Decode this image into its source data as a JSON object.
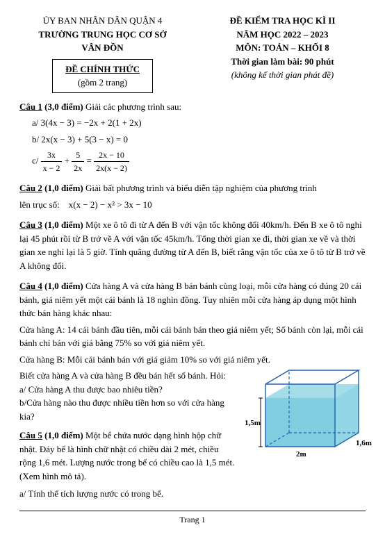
{
  "header": {
    "left1": "ỦY BAN NHÂN DÂN QUẬN 4",
    "left2": "TRƯỜNG TRUNG HỌC CƠ SỞ",
    "left3": "VÂN ĐỒN",
    "box1": "ĐỀ CHÍNH THỨC",
    "box2": "(gồm 2 trang)",
    "right1": "ĐỀ KIỂM TRA HỌC KÌ II",
    "right2": "NĂM HỌC 2022 – 2023",
    "right3": "MÔN: TOÁN – KHỐI 8",
    "right4": "Thời gian làm bài: 90 phút",
    "right5": "(không kể thời gian phát đề)"
  },
  "q1": {
    "title": "Câu 1",
    "pts": "(3,0 điểm)",
    "text": "Giải các phương trình sau:",
    "a_label": "a/",
    "a": "3(4x − 3) = −2x + 2(1 + 2x)",
    "b_label": "b/",
    "b": "2x(x − 3) + 5(3 − x) = 0",
    "c_label": "c/",
    "c_n1": "3x",
    "c_d1": "x − 2",
    "c_plus": "+",
    "c_n2": "5",
    "c_d2": "2x",
    "c_eq": "=",
    "c_n3": "2x − 10",
    "c_d3": "2x(x − 2)"
  },
  "q2": {
    "title": "Câu 2",
    "pts": "(1,0 điểm)",
    "text": "Giải bất phương trình và biểu diễn tập nghiệm của phương trình",
    "line2": "lên trục số:",
    "eq": "x(x − 2) − x² > 3x − 10"
  },
  "q3": {
    "title": "Câu 3",
    "pts": "(1,0 điểm)",
    "text": "Một xe ô tô đi từ A đến B với vận tốc không đổi 40km/h. Đến B xe ô tô nghỉ lại 45 phút rồi từ B trở về A với vận tốc 45km/h. Tổng thời gian xe đi, thời gian xe về và thời gian xe nghỉ lại là 5 giờ. Tính quãng đường từ A đến B, biết rằng vận tốc của xe ô tô từ B trở về A không đổi."
  },
  "q4": {
    "title": "Câu 4",
    "pts": "(1,0 điểm)",
    "p1": "Cửa hàng A và cửa hàng B bán bánh cùng loại, mỗi cửa hàng có đúng 20 cái bánh, giá niêm yết một cái bánh là 18 nghìn đồng. Tuy nhiên mỗi cửa hàng áp dụng một hình thức bán hàng khác nhau:",
    "p2": "Cửa hàng A:  14 cái bánh đầu tiên, mỗi cái bánh bán theo giá niêm yết; Số bánh còn lại, mỗi cái bánh chỉ bán với giá bằng 75% so với giá niêm yết.",
    "p3": "Cửa hàng B: Mỗi cái bánh bán với giá giảm 10%  so với giá niêm yết.",
    "p4": "Biết cửa hàng A và cửa hàng B đều bán hết số bánh. Hỏi:",
    "a": "a/ Cửa hàng A thu được bao nhiêu tiền?",
    "b": "b/Cửa hàng nào thu được nhiều tiền hơn so với cửa hàng kia?"
  },
  "q5": {
    "title": "Câu 5",
    "pts": "(1,0 điểm)",
    "text": "Một bể chứa nước dạng hình hộp chữ nhật. Đáy bể là hình chữ nhật có chiều dài 2 mét, chiều rộng 1,6 mét. Lượng nước trong bể có chiều cao là 1,5 mét. (Xem hình mô tả).",
    "a": "a/ Tính thể tích lượng nước có trong bể."
  },
  "box3d": {
    "width": "2m",
    "depth": "1,6m",
    "height": "1,5m",
    "water_color": "#7fcfe0",
    "edge_color": "#2060b0",
    "dash_color": "#2060b0"
  },
  "footer": "Trang 1"
}
